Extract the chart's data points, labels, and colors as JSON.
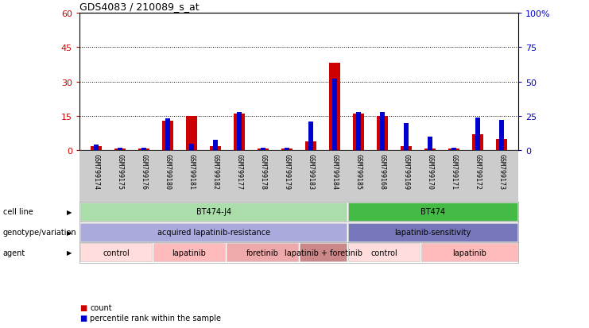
{
  "title": "GDS4083 / 210089_s_at",
  "samples": [
    "GSM799174",
    "GSM799175",
    "GSM799176",
    "GSM799180",
    "GSM799181",
    "GSM799182",
    "GSM799177",
    "GSM799178",
    "GSM799179",
    "GSM799183",
    "GSM799184",
    "GSM799185",
    "GSM799168",
    "GSM799169",
    "GSM799170",
    "GSM799171",
    "GSM799172",
    "GSM799173"
  ],
  "counts": [
    2,
    1,
    1,
    13,
    15,
    2,
    16,
    1,
    1,
    4,
    38,
    16,
    15,
    2,
    1,
    1,
    7,
    5
  ],
  "percentiles": [
    4,
    2,
    2,
    23,
    5,
    8,
    28,
    2,
    2,
    21,
    52,
    28,
    28,
    20,
    10,
    2,
    24,
    22
  ],
  "ylim_left": [
    0,
    60
  ],
  "ylim_right": [
    0,
    100
  ],
  "yticks_left": [
    0,
    15,
    30,
    45,
    60
  ],
  "yticks_right": [
    0,
    25,
    50,
    75,
    100
  ],
  "ytick_labels_left": [
    "0",
    "15",
    "30",
    "45",
    "60"
  ],
  "ytick_labels_right": [
    "0",
    "25",
    "50",
    "75",
    "100%"
  ],
  "bar_color": "#cc0000",
  "percentile_color": "#0000cc",
  "cell_line_groups": [
    {
      "label": "BT474-J4",
      "start": 0,
      "end": 11,
      "color": "#aaddaa"
    },
    {
      "label": "BT474",
      "start": 11,
      "end": 18,
      "color": "#44bb44"
    }
  ],
  "genotype_groups": [
    {
      "label": "acquired lapatinib-resistance",
      "start": 0,
      "end": 11,
      "color": "#aaaadd"
    },
    {
      "label": "lapatinib-sensitivity",
      "start": 11,
      "end": 18,
      "color": "#7777bb"
    }
  ],
  "agent_groups": [
    {
      "label": "control",
      "start": 0,
      "end": 3,
      "color": "#ffdddd"
    },
    {
      "label": "lapatinib",
      "start": 3,
      "end": 6,
      "color": "#ffbbbb"
    },
    {
      "label": "foretinib",
      "start": 6,
      "end": 9,
      "color": "#eeaaaa"
    },
    {
      "label": "lapatinib + foretinib",
      "start": 9,
      "end": 11,
      "color": "#cc8888"
    },
    {
      "label": "control",
      "start": 11,
      "end": 14,
      "color": "#ffdddd"
    },
    {
      "label": "lapatinib",
      "start": 14,
      "end": 18,
      "color": "#ffbbbb"
    }
  ],
  "legend_items": [
    {
      "label": "count",
      "color": "#cc0000"
    },
    {
      "label": "percentile rank within the sample",
      "color": "#0000cc"
    }
  ],
  "bg_color": "#ffffff",
  "xticklabel_bg": "#cccccc"
}
